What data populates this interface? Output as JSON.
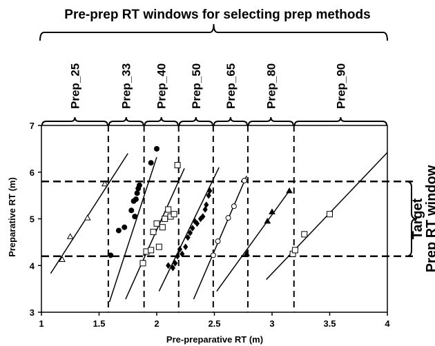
{
  "chart_data": {
    "type": "scatter",
    "title": "Pre-prep RT windows for selecting prep methods",
    "xlabel": "Pre-preparative RT (m)",
    "ylabel": "Preparative RT (m)",
    "xlim": [
      1,
      4
    ],
    "ylim": [
      3,
      7
    ],
    "xticks": [
      1,
      1.5,
      2,
      2.5,
      3,
      3.5,
      4
    ],
    "yticks": [
      3,
      4,
      5,
      6,
      7
    ],
    "x_tick_labels": [
      "1",
      "1.5",
      "2",
      "2.5",
      "3",
      "3.5",
      "4"
    ],
    "y_tick_labels": [
      "3",
      "4",
      "5",
      "6",
      "7"
    ],
    "grid": false,
    "window_boundaries_x": [
      1.58,
      1.89,
      2.19,
      2.49,
      2.79,
      3.19
    ],
    "target_window_y": [
      4.2,
      5.8
    ],
    "target_label": [
      "Target",
      "Prep RT window"
    ],
    "prep_methods": [
      {
        "label": "Prep_25",
        "range": [
          1.0,
          1.58
        ]
      },
      {
        "label": "Prep_33",
        "range": [
          1.58,
          1.89
        ]
      },
      {
        "label": "Prep_40",
        "range": [
          1.89,
          2.19
        ]
      },
      {
        "label": "Prep_50",
        "range": [
          2.19,
          2.49
        ]
      },
      {
        "label": "Prep_65",
        "range": [
          2.49,
          2.79
        ]
      },
      {
        "label": "Prep_80",
        "range": [
          2.79,
          3.19
        ]
      },
      {
        "label": "Prep_90",
        "range": [
          3.19,
          4.0
        ]
      }
    ],
    "series": [
      {
        "marker": "triangle-open",
        "points": [
          [
            1.18,
            4.13
          ],
          [
            1.25,
            4.62
          ],
          [
            1.4,
            5.02
          ],
          [
            1.55,
            5.75
          ]
        ],
        "fit": [
          [
            1.08,
            3.83
          ],
          [
            1.75,
            6.4
          ]
        ]
      },
      {
        "marker": "circle-filled",
        "points": [
          [
            1.6,
            4.22
          ],
          [
            1.67,
            4.75
          ],
          [
            1.72,
            4.82
          ],
          [
            1.78,
            5.18
          ],
          [
            1.8,
            5.38
          ],
          [
            1.82,
            5.42
          ],
          [
            1.83,
            5.55
          ],
          [
            1.84,
            5.65
          ],
          [
            1.85,
            5.72
          ],
          [
            1.95,
            6.2
          ],
          [
            2.0,
            6.5
          ],
          [
            1.81,
            5.05
          ]
        ],
        "fit": [
          [
            1.59,
            3.22
          ],
          [
            2.0,
            6.32
          ]
        ]
      },
      {
        "marker": "square-open",
        "points": [
          [
            1.88,
            4.05
          ],
          [
            1.91,
            4.3
          ],
          [
            1.95,
            4.33
          ],
          [
            1.97,
            4.72
          ],
          [
            2.0,
            4.9
          ],
          [
            2.02,
            4.4
          ],
          [
            2.05,
            4.82
          ],
          [
            2.07,
            5.0
          ],
          [
            2.1,
            5.2
          ],
          [
            2.12,
            5.05
          ],
          [
            2.15,
            5.1
          ],
          [
            2.18,
            6.15
          ]
        ],
        "fit": [
          [
            1.73,
            3.28
          ],
          [
            2.24,
            6.08
          ]
        ]
      },
      {
        "marker": "diamond-filled",
        "points": [
          [
            2.1,
            4.0
          ],
          [
            2.14,
            3.95
          ],
          [
            2.16,
            4.05
          ],
          [
            2.18,
            4.2
          ],
          [
            2.2,
            4.35
          ],
          [
            2.22,
            4.25
          ],
          [
            2.25,
            4.4
          ],
          [
            2.27,
            4.6
          ],
          [
            2.29,
            4.7
          ],
          [
            2.31,
            4.8
          ],
          [
            2.33,
            4.95
          ],
          [
            2.35,
            4.9
          ],
          [
            2.38,
            5.0
          ],
          [
            2.4,
            5.05
          ],
          [
            2.42,
            5.2
          ],
          [
            2.43,
            5.3
          ],
          [
            2.45,
            5.5
          ],
          [
            2.46,
            5.6
          ]
        ],
        "fit": [
          [
            2.02,
            3.45
          ],
          [
            2.54,
            6.1
          ]
        ]
      },
      {
        "marker": "circle-open",
        "points": [
          [
            2.49,
            4.22
          ],
          [
            2.53,
            4.52
          ],
          [
            2.62,
            5.02
          ],
          [
            2.67,
            5.27
          ],
          [
            2.76,
            5.82
          ]
        ],
        "fit": [
          [
            2.32,
            3.28
          ],
          [
            2.78,
            5.92
          ]
        ]
      },
      {
        "marker": "triangle-filled",
        "points": [
          [
            2.78,
            4.25
          ],
          [
            2.96,
            4.95
          ],
          [
            3.0,
            5.15
          ],
          [
            3.15,
            5.6
          ]
        ],
        "fit": [
          [
            2.52,
            3.45
          ],
          [
            3.15,
            5.6
          ]
        ]
      },
      {
        "marker": "square-open",
        "points": [
          [
            3.18,
            4.25
          ],
          [
            3.2,
            4.33
          ],
          [
            3.28,
            4.67
          ],
          [
            3.5,
            5.1
          ]
        ],
        "fit": [
          [
            2.95,
            3.7
          ],
          [
            4.0,
            6.42
          ]
        ]
      }
    ]
  }
}
